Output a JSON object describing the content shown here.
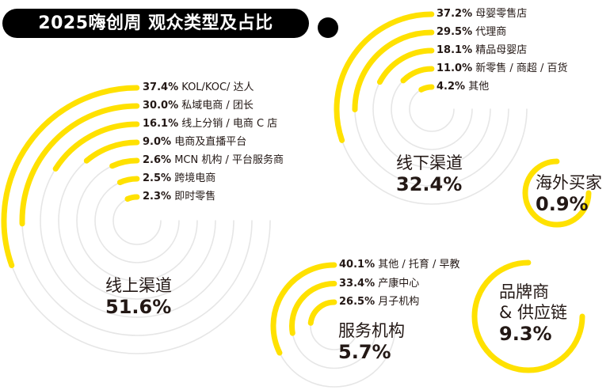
{
  "title": "2025嗨创周 观众类型及占比",
  "colors": {
    "accent": "#FFE100",
    "track": "#E6E6E6",
    "text": "#231815",
    "title_bg": "#000000"
  },
  "chart_data": [
    {
      "type": "radial-bar",
      "category": "线上渠道",
      "share": "51.6%",
      "items": [
        {
          "value": 37.4,
          "label": "37.4%",
          "name": "KOL/KOC/ 达人"
        },
        {
          "value": 30.0,
          "label": "30.0%",
          "name": "私域电商 / 团长"
        },
        {
          "value": 16.1,
          "label": "16.1%",
          "name": "线上分销 / 电商 C 店"
        },
        {
          "value": 9.0,
          "label": "9.0%",
          "name": "电商及直播平台"
        },
        {
          "value": 2.6,
          "label": "2.6%",
          "name": "MCN 机构 / 平台服务商"
        },
        {
          "value": 2.5,
          "label": "2.5%",
          "name": "跨境电商"
        },
        {
          "value": 2.3,
          "label": "2.3%",
          "name": "即时零售"
        }
      ]
    },
    {
      "type": "radial-bar",
      "category": "线下渠道",
      "share": "32.4%",
      "items": [
        {
          "value": 37.2,
          "label": "37.2%",
          "name": "母婴零售店"
        },
        {
          "value": 29.5,
          "label": "29.5%",
          "name": "代理商"
        },
        {
          "value": 18.1,
          "label": "18.1%",
          "name": "精品母婴店"
        },
        {
          "value": 11.0,
          "label": "11.0%",
          "name": "新零售 / 商超 / 百货"
        },
        {
          "value": 4.2,
          "label": "4.2%",
          "name": "其他"
        }
      ]
    },
    {
      "type": "radial-bar",
      "category": "服务机构",
      "share": "5.7%",
      "items": [
        {
          "value": 40.1,
          "label": "40.1%",
          "name": "其他 / 托育 / 早教"
        },
        {
          "value": 33.4,
          "label": "33.4%",
          "name": "产康中心"
        },
        {
          "value": 26.5,
          "label": "26.5%",
          "name": "月子机构"
        }
      ]
    },
    {
      "type": "ring",
      "category": "品牌商",
      "category_line2": "& 供应链",
      "share": "9.3%"
    },
    {
      "type": "ring",
      "category": "海外买家",
      "share": "0.9%"
    }
  ]
}
